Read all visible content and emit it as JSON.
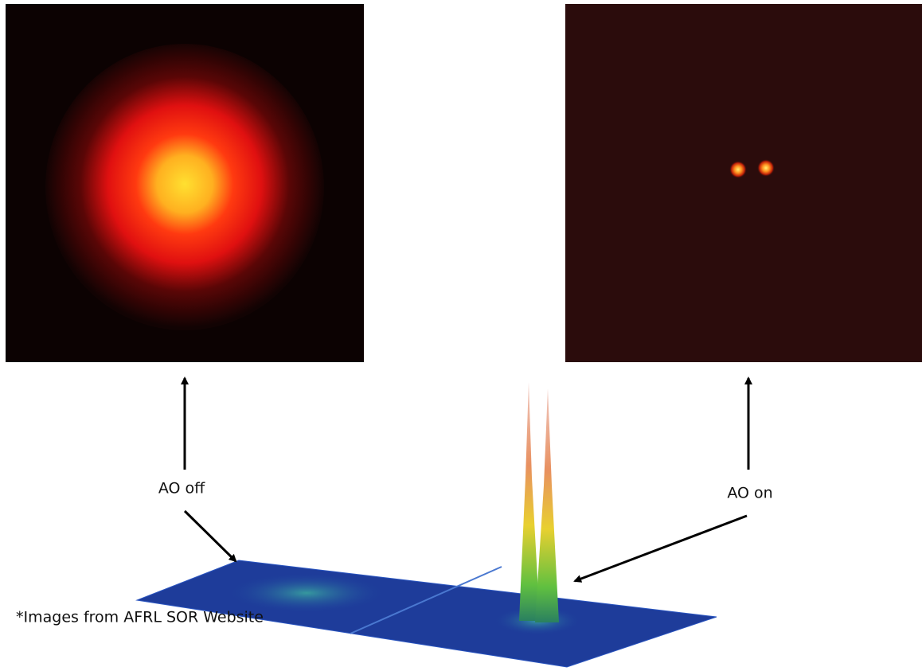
{
  "labels": {
    "ao_off": "AO off",
    "ao_on": "AO on"
  },
  "footnote": "*Images from AFRL SOR Website"
}
